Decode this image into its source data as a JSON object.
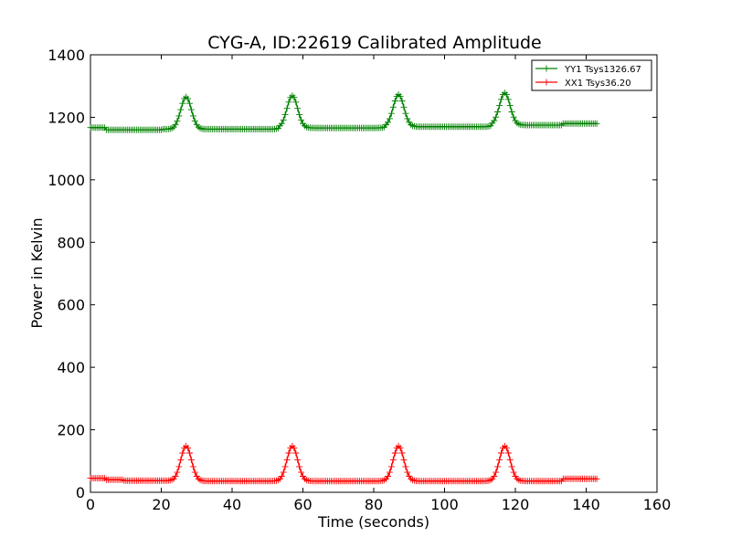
{
  "chart_data": {
    "type": "line",
    "title": "CYG-A, ID:22619 Calibrated Amplitude",
    "xlabel": "Time (seconds)",
    "ylabel": "Power in Kelvin",
    "xlim": [
      0,
      160
    ],
    "ylim": [
      0,
      1400
    ],
    "xticks": [
      "0",
      "20",
      "40",
      "60",
      "80",
      "100",
      "120",
      "140",
      "160"
    ],
    "yticks": [
      "0",
      "200",
      "400",
      "600",
      "800",
      "1000",
      "1200",
      "1400"
    ],
    "grid": false,
    "legend_position": "top-right",
    "marker": "+",
    "peak_times": [
      27,
      57,
      87,
      117
    ],
    "x_end": 143,
    "series": [
      {
        "name": "YY1 Tsys1326.67",
        "color": "#008000",
        "baseline": 1165,
        "peak": 1268,
        "segments": [
          {
            "x": [
              0,
              4
            ],
            "y": 1167
          },
          {
            "x": [
              4,
              20
            ],
            "y": 1160
          },
          {
            "x": [
              20,
              53
            ],
            "y": 1162
          },
          {
            "x": [
              53,
              83
            ],
            "y": 1166
          },
          {
            "x": [
              83,
              113
            ],
            "y": 1170
          },
          {
            "x": [
              113,
              133
            ],
            "y": 1175
          },
          {
            "x": [
              133,
              143
            ],
            "y": 1180
          }
        ]
      },
      {
        "name": "XX1 Tsys36.20",
        "color": "#ff0000",
        "baseline": 36,
        "peak": 148,
        "segments": [
          {
            "x": [
              0,
              4
            ],
            "y": 45
          },
          {
            "x": [
              4,
              9
            ],
            "y": 40
          },
          {
            "x": [
              9,
              23
            ],
            "y": 37
          },
          {
            "x": [
              23,
              133
            ],
            "y": 36
          },
          {
            "x": [
              133,
              143
            ],
            "y": 43
          }
        ]
      }
    ]
  }
}
